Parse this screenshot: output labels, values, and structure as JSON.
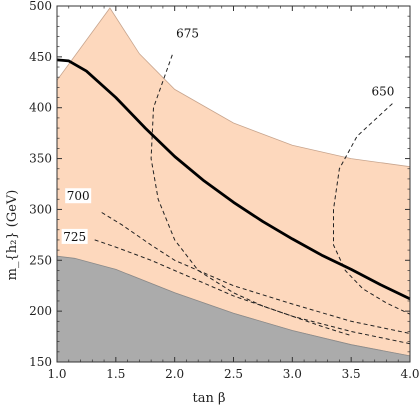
{
  "chart_data": {
    "type": "area",
    "xlabel": "tan β",
    "ylabel": "m_{h₂} (GeV)",
    "xlim": [
      1.0,
      4.0
    ],
    "ylim": [
      150,
      500
    ],
    "x_ticks": [
      "1.0",
      "1.5",
      "2.0",
      "2.5",
      "3.0",
      "3.5",
      "4.0"
    ],
    "y_ticks": [
      "150",
      "200",
      "250",
      "300",
      "350",
      "400",
      "450",
      "500"
    ],
    "colors": {
      "allowed_region": "#fdd8bd",
      "allowed_edge": "#c8a58e",
      "excluded_region": "#ababab",
      "thick_curve": "#000000",
      "contours": "#222222"
    },
    "allowed_region": {
      "upper": {
        "x": [
          1.0,
          1.45,
          1.7,
          2.0,
          2.5,
          3.0,
          3.5,
          4.0
        ],
        "y": [
          427,
          498,
          453,
          418,
          385,
          363,
          350,
          342
        ]
      },
      "lower": {
        "x": [
          1.0,
          1.5,
          2.0,
          2.5,
          3.0,
          3.5,
          4.0
        ],
        "y": [
          254,
          241,
          218,
          198,
          181,
          167,
          156
        ]
      }
    },
    "excluded_region": {
      "x": [
        1.0,
        1.15,
        1.5,
        2.0,
        2.5,
        3.0,
        3.5,
        4.0
      ],
      "y": [
        254,
        252,
        241,
        218,
        198,
        181,
        167,
        156
      ]
    },
    "thick_curve": {
      "x": [
        1.0,
        1.1,
        1.25,
        1.5,
        1.75,
        2.0,
        2.25,
        2.5,
        2.75,
        3.0,
        3.25,
        3.5,
        3.75,
        4.0
      ],
      "y": [
        447,
        446,
        436,
        410,
        380,
        352,
        328,
        307,
        288,
        271,
        255,
        241,
        226,
        212
      ]
    },
    "contours": [
      {
        "label": "675",
        "x": [
          1.98,
          1.82,
          1.8,
          1.86,
          2.0,
          2.2,
          2.5,
          2.75,
          3.0,
          3.25,
          3.5
        ],
        "y": [
          452,
          400,
          350,
          310,
          270,
          240,
          218,
          205,
          195,
          185,
          176
        ]
      },
      {
        "label": "650",
        "x": [
          3.85,
          3.55,
          3.4,
          3.35,
          3.35,
          3.45,
          3.6,
          3.8,
          4.0
        ],
        "y": [
          404,
          372,
          340,
          300,
          265,
          240,
          222,
          208,
          197
        ]
      },
      {
        "label": "700",
        "x": [
          1.38,
          1.55,
          1.8,
          2.0,
          2.5,
          3.0,
          3.5,
          4.0
        ],
        "y": [
          297,
          285,
          265,
          250,
          225,
          207,
          190,
          178
        ]
      },
      {
        "label": "725",
        "x": [
          1.32,
          1.5,
          1.8,
          2.0,
          2.5,
          3.0,
          3.5,
          4.0
        ],
        "y": [
          270,
          263,
          250,
          240,
          215,
          195,
          180,
          168
        ]
      }
    ],
    "contour_label_positions": {
      "675": [
        2.11,
        472
      ],
      "650": [
        3.77,
        415
      ],
      "700": [
        1.18,
        312
      ],
      "725": [
        1.15,
        272
      ]
    }
  }
}
